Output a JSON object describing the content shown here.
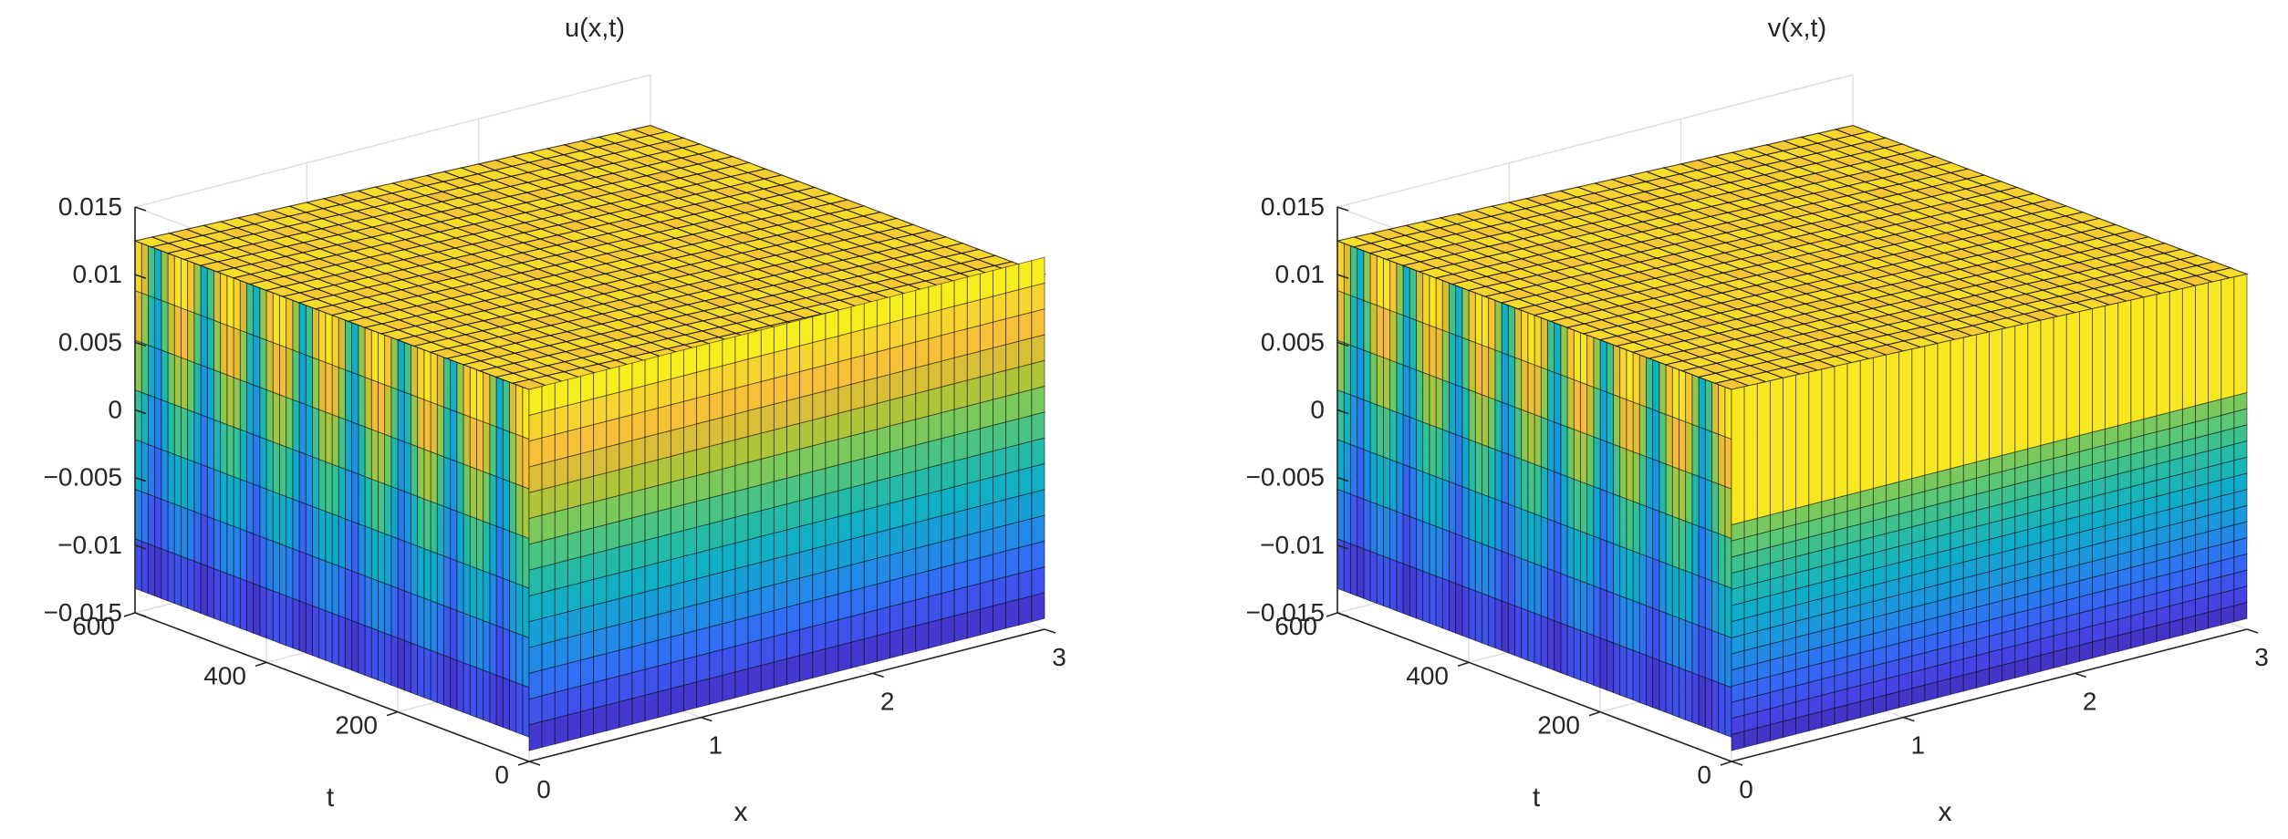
{
  "chart_data": [
    {
      "type": "surface",
      "title": "u(x,t)",
      "xlabel": "x",
      "ylabel": "t",
      "zlabel": "",
      "xlim": [
        0,
        3
      ],
      "ylim": [
        0,
        600
      ],
      "zlim": [
        -0.015,
        0.015
      ],
      "xticks": [
        "0",
        "1",
        "2",
        "3"
      ],
      "yticks": [
        "0",
        "200",
        "400",
        "600"
      ],
      "zticks": [
        "−0.015",
        "−0.01",
        "−0.005",
        "0",
        "0.005",
        "0.01",
        "0.015"
      ],
      "colormap": "parula",
      "amplitude": 0.0125,
      "front_face_top": 0.0125
    },
    {
      "type": "surface",
      "title": "v(x,t)",
      "xlabel": "x",
      "ylabel": "t",
      "zlabel": "",
      "xlim": [
        0,
        3
      ],
      "ylim": [
        0,
        600
      ],
      "zlim": [
        -0.015,
        0.015
      ],
      "xticks": [
        "0",
        "1",
        "2",
        "3"
      ],
      "yticks": [
        "0",
        "200",
        "400",
        "600"
      ],
      "zticks": [
        "−0.015",
        "−0.01",
        "−0.005",
        "0",
        "0.005",
        "0.01",
        "0.015"
      ],
      "colormap": "parula",
      "amplitude": 0.0125,
      "front_face_top": 0.0025
    }
  ]
}
